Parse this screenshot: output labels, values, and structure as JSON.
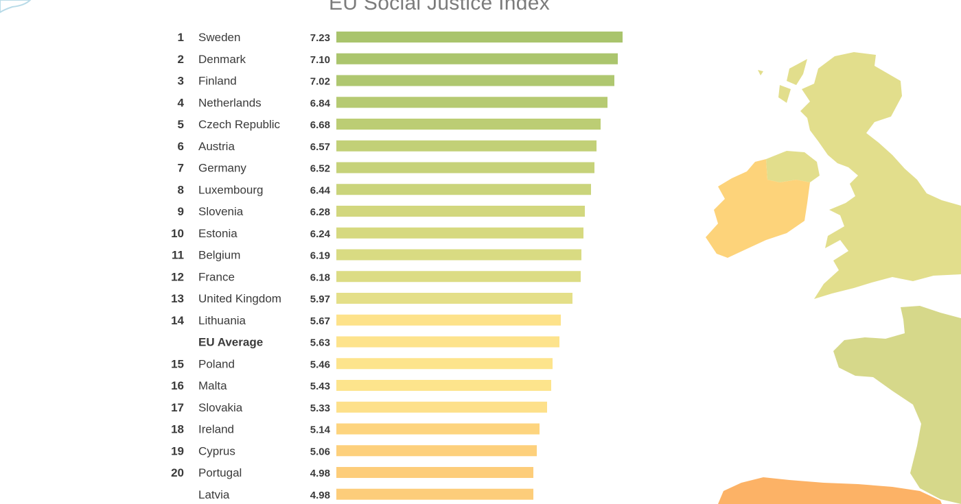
{
  "chart_data": {
    "type": "bar",
    "orientation": "horizontal",
    "title": "EU Social Justice Index",
    "rows": [
      {
        "rank": "1",
        "country": "Sweden",
        "value": 7.23,
        "label": "7.23",
        "color": "#a9c46c"
      },
      {
        "rank": "2",
        "country": "Denmark",
        "value": 7.1,
        "label": "7.10",
        "color": "#abc56d"
      },
      {
        "rank": "3",
        "country": "Finland",
        "value": 7.02,
        "label": "7.02",
        "color": "#afc770"
      },
      {
        "rank": "4",
        "country": "Netherlands",
        "value": 6.84,
        "label": "6.84",
        "color": "#b6ca72"
      },
      {
        "rank": "5",
        "country": "Czech Republic",
        "value": 6.68,
        "label": "6.68",
        "color": "#bccd74"
      },
      {
        "rank": "6",
        "country": "Austria",
        "value": 6.57,
        "label": "6.57",
        "color": "#c2d077"
      },
      {
        "rank": "7",
        "country": "Germany",
        "value": 6.52,
        "label": "6.52",
        "color": "#c6d279"
      },
      {
        "rank": "8",
        "country": "Luxembourg",
        "value": 6.44,
        "label": "6.44",
        "color": "#cad47b"
      },
      {
        "rank": "9",
        "country": "Slovenia",
        "value": 6.28,
        "label": "6.28",
        "color": "#d2d77e"
      },
      {
        "rank": "10",
        "country": "Estonia",
        "value": 6.24,
        "label": "6.24",
        "color": "#d6d97f"
      },
      {
        "rank": "11",
        "country": "Belgium",
        "value": 6.19,
        "label": "6.19",
        "color": "#d9db82"
      },
      {
        "rank": "12",
        "country": "France",
        "value": 6.18,
        "label": "6.18",
        "color": "#dcdc84"
      },
      {
        "rank": "13",
        "country": "United Kingdom",
        "value": 5.97,
        "label": "5.97",
        "color": "#e4df88"
      },
      {
        "rank": "14",
        "country": "Lithuania",
        "value": 5.67,
        "label": "5.67",
        "color": "#fde28a"
      },
      {
        "rank": "",
        "country": "EU Average",
        "value": 5.63,
        "label": "5.63",
        "color": "#fde38c",
        "bold": true
      },
      {
        "rank": "15",
        "country": "Poland",
        "value": 5.46,
        "label": "5.46",
        "color": "#fde48c"
      },
      {
        "rank": "16",
        "country": "Malta",
        "value": 5.43,
        "label": "5.43",
        "color": "#fde48c"
      },
      {
        "rank": "17",
        "country": "Slovakia",
        "value": 5.33,
        "label": "5.33",
        "color": "#fde08a"
      },
      {
        "rank": "18",
        "country": "Ireland",
        "value": 5.14,
        "label": "5.14",
        "color": "#fdd47e"
      },
      {
        "rank": "19",
        "country": "Cyprus",
        "value": 5.06,
        "label": "5.06",
        "color": "#fdd07c"
      },
      {
        "rank": "20",
        "country": "Portugal",
        "value": 4.98,
        "label": "4.98",
        "color": "#fdcd7a"
      },
      {
        "rank": "",
        "country": "Latvia",
        "value": 4.98,
        "label": "4.98",
        "color": "#fdcd7a"
      }
    ]
  },
  "map": {
    "colors": {
      "uk": "#e2de8c",
      "ireland": "#fdd37a",
      "northern_ireland": "#e2de8c",
      "france": "#d6d88a",
      "iberia": "#fcb266",
      "water_outline": "#b9dbe8"
    }
  }
}
